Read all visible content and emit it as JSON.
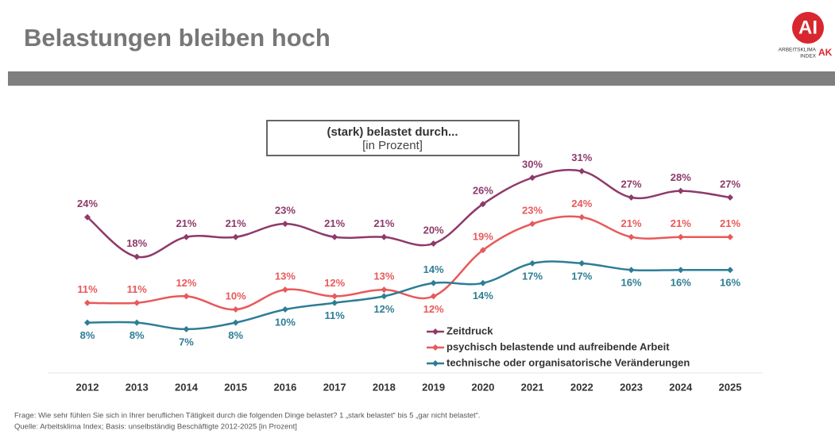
{
  "header": {
    "title": "Belastungen bleiben hoch",
    "logo": {
      "mark": "AI",
      "line1": "ARBEITSKLIMA",
      "line2": "INDEX",
      "brand": "AK"
    }
  },
  "chart_data": {
    "type": "line",
    "title": "(stark) belastet durch...",
    "subtitle": "[in Prozent]",
    "categories": [
      "2012",
      "2013",
      "2014",
      "2015",
      "2016",
      "2017",
      "2018",
      "2019",
      "2020",
      "2021",
      "2022",
      "2023",
      "2024",
      "2025"
    ],
    "series": [
      {
        "name": "Zeitdruck",
        "color": "#8e3a6a",
        "values": [
          24,
          18,
          21,
          21,
          23,
          21,
          21,
          20,
          26,
          30,
          31,
          27,
          28,
          27
        ],
        "value_labels": [
          "24%",
          "18%",
          "21%",
          "21%",
          "23%",
          "21%",
          "21%",
          "20%",
          "26%",
          "30%",
          "31%",
          "27%",
          "28%",
          "27%"
        ]
      },
      {
        "name": "psychisch belastende und aufreibende Arbeit",
        "color": "#e9595a",
        "values": [
          11,
          11,
          12,
          10,
          13,
          12,
          13,
          12,
          19,
          23,
          24,
          21,
          21,
          21
        ],
        "value_labels": [
          "11%",
          "11%",
          "12%",
          "10%",
          "13%",
          "12%",
          "13%",
          "12%",
          "19%",
          "23%",
          "24%",
          "21%",
          "21%",
          "21%"
        ]
      },
      {
        "name": "technische oder organisatorische Veränderungen",
        "color": "#2e7d95",
        "values": [
          8,
          8,
          7,
          8,
          10,
          11,
          12,
          14,
          14,
          17,
          17,
          16,
          16,
          16
        ],
        "value_labels": [
          "8%",
          "8%",
          "7%",
          "8%",
          "10%",
          "11%",
          "12%",
          "14%",
          "14%",
          "17%",
          "17%",
          "16%",
          "16%",
          "16%"
        ]
      }
    ],
    "legend": "lower right"
  },
  "footer": {
    "note": "Frage: Wie sehr fühlen Sie sich in Ihrer beruflichen Tätigkeit durch die folgenden Dinge belastet? 1 „stark belastet“ bis 5 „gar nicht belastet“.",
    "source": "Quelle: Arbeitsklima Index; Basis: unselbständig Beschäftigte 2012-2025 [in Prozent]"
  }
}
